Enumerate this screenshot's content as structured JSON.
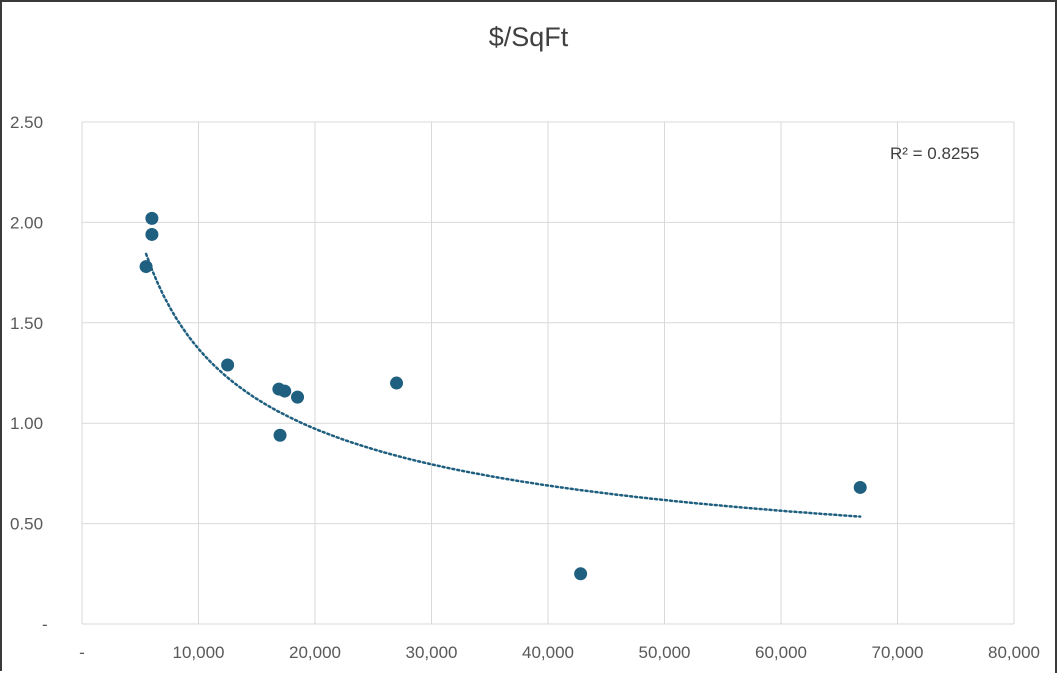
{
  "chart_data": {
    "type": "scatter",
    "title": "$/SqFt",
    "xlabel": "",
    "ylabel": "",
    "xlim": [
      0,
      80000
    ],
    "ylim": [
      0,
      2.5
    ],
    "x_ticks": [
      0,
      10000,
      20000,
      30000,
      40000,
      50000,
      60000,
      70000,
      80000
    ],
    "x_tick_labels": [
      "-",
      "10,000",
      "20,000",
      "30,000",
      "40,000",
      "50,000",
      "60,000",
      "70,000",
      "80,000"
    ],
    "y_ticks": [
      0,
      0.5,
      1.0,
      1.5,
      2.0,
      2.5
    ],
    "y_tick_labels": [
      "-",
      "0.50",
      "1.00",
      "1.50",
      "2.00",
      "2.50"
    ],
    "grid": true,
    "marker_color": "#1f5f7f",
    "points": [
      {
        "x": 5500,
        "y": 1.78
      },
      {
        "x": 6000,
        "y": 2.02
      },
      {
        "x": 6000,
        "y": 1.94
      },
      {
        "x": 12500,
        "y": 1.29
      },
      {
        "x": 16900,
        "y": 1.17
      },
      {
        "x": 17400,
        "y": 1.16
      },
      {
        "x": 17000,
        "y": 0.94
      },
      {
        "x": 18500,
        "y": 1.13
      },
      {
        "x": 27000,
        "y": 1.2
      },
      {
        "x": 42800,
        "y": 0.25
      },
      {
        "x": 66800,
        "y": 0.68
      }
    ],
    "trendline": {
      "type": "power",
      "style": "dotted",
      "coef_a": 131.5,
      "exponent": -0.4955,
      "x_range": [
        5500,
        66800
      ],
      "r_squared_label": "R² = 0.8255"
    }
  }
}
